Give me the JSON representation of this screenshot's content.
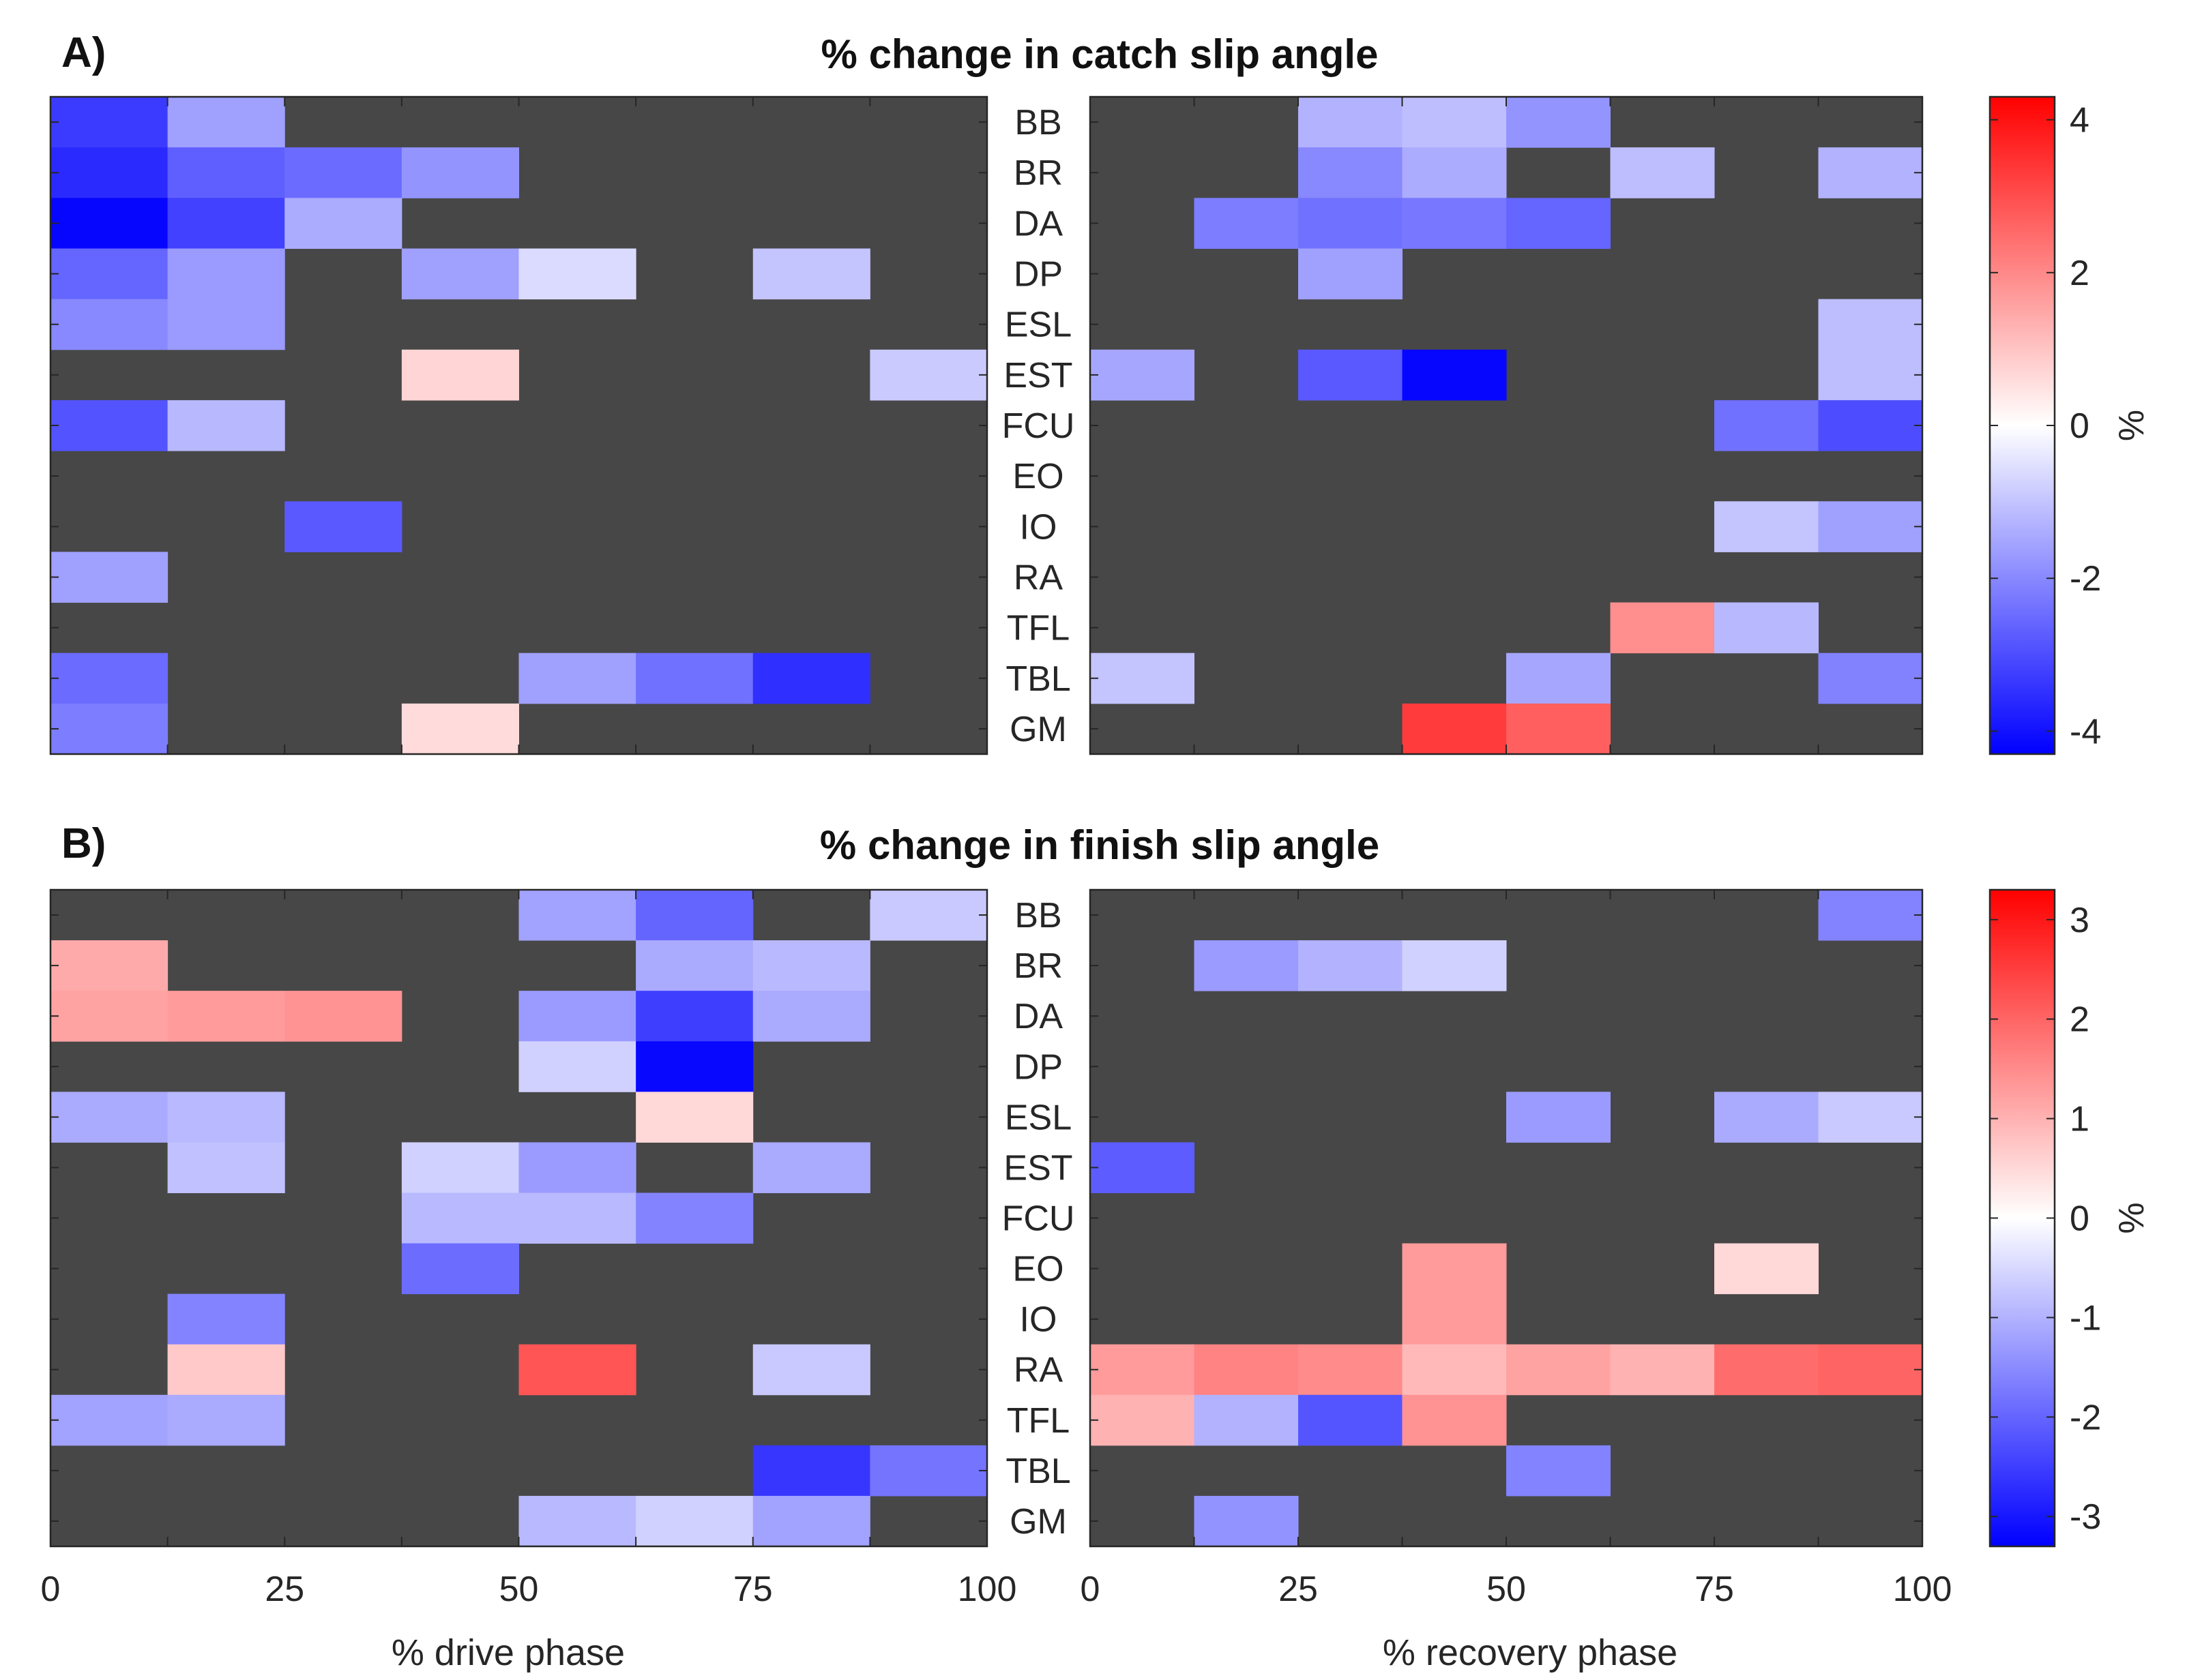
{
  "chart_data": {
    "type": "heatmap",
    "nodata_color": "#474747",
    "muscles": [
      "BB",
      "BR",
      "DA",
      "DP",
      "ESL",
      "EST",
      "FCU",
      "EO",
      "IO",
      "RA",
      "TFL",
      "TBL",
      "GM"
    ],
    "x_ticks": [
      "0",
      "25",
      "50",
      "75",
      "100"
    ],
    "xlabel_drive": "% drive phase",
    "xlabel_recovery": "% recovery phase",
    "colorbar_label": "%",
    "colormap": [
      "#0000ff",
      "#ffffff",
      "#ff0000"
    ],
    "panels": [
      {
        "label": "A)",
        "title": "% change in catch slip angle",
        "clim": [
          -4.3,
          4.3
        ],
        "colorbar_ticks": [
          "4",
          "2",
          "0",
          "-2",
          "-4"
        ],
        "colorbar_tick_values": [
          4,
          2,
          0,
          -2,
          -4
        ],
        "drive": [
          [
            -3.3,
            -1.6,
            null,
            null,
            null,
            null,
            null,
            null
          ],
          [
            -3.6,
            -2.7,
            -2.5,
            -1.8,
            null,
            null,
            null,
            null
          ],
          [
            -4.2,
            -3.2,
            -1.4,
            null,
            null,
            null,
            null,
            null
          ],
          [
            -2.6,
            -1.7,
            null,
            -1.6,
            -0.6,
            null,
            -1.0,
            null
          ],
          [
            -2.0,
            -1.7,
            null,
            null,
            null,
            null,
            null,
            null
          ],
          [
            null,
            null,
            null,
            0.7,
            null,
            null,
            null,
            -0.9
          ],
          [
            -2.9,
            -1.2,
            null,
            null,
            null,
            null,
            null,
            null
          ],
          [
            null,
            null,
            null,
            null,
            null,
            null,
            null,
            null
          ],
          [
            null,
            null,
            -2.8,
            null,
            null,
            null,
            null,
            null
          ],
          [
            -1.6,
            null,
            null,
            null,
            null,
            null,
            null,
            null
          ],
          [
            null,
            null,
            null,
            null,
            null,
            null,
            null,
            null
          ],
          [
            -2.5,
            null,
            null,
            null,
            -1.6,
            -2.4,
            -3.5,
            null
          ],
          [
            -2.2,
            null,
            null,
            0.6,
            null,
            null,
            null,
            null
          ]
        ],
        "recovery": [
          [
            null,
            null,
            -1.3,
            -1.1,
            -1.8,
            null,
            null,
            null
          ],
          [
            null,
            null,
            -2.0,
            -1.4,
            null,
            -1.1,
            null,
            -1.3
          ],
          [
            null,
            -2.2,
            -2.4,
            -2.3,
            -2.6,
            null,
            null,
            null
          ],
          [
            null,
            null,
            -1.6,
            null,
            null,
            null,
            null,
            null
          ],
          [
            null,
            null,
            null,
            null,
            null,
            null,
            null,
            -1.1
          ],
          [
            -1.5,
            null,
            -2.8,
            -4.2,
            null,
            null,
            null,
            -1.1
          ],
          [
            null,
            null,
            null,
            null,
            null,
            null,
            -2.4,
            -3.0
          ],
          [
            null,
            null,
            null,
            null,
            null,
            null,
            null,
            null
          ],
          [
            null,
            null,
            null,
            null,
            null,
            null,
            -1.0,
            -1.6
          ],
          [
            null,
            null,
            null,
            null,
            null,
            null,
            null,
            null
          ],
          [
            null,
            null,
            null,
            null,
            null,
            1.9,
            -1.2,
            null
          ],
          [
            -1.0,
            null,
            null,
            null,
            -1.5,
            null,
            null,
            -2.1
          ],
          [
            null,
            null,
            null,
            3.3,
            2.7,
            null,
            null,
            null
          ]
        ]
      },
      {
        "label": "B)",
        "title": "% change in finish slip angle",
        "clim": [
          -3.3,
          3.3
        ],
        "colorbar_ticks": [
          "3",
          "2",
          "1",
          "0",
          "-1",
          "-2",
          "-3"
        ],
        "colorbar_tick_values": [
          3,
          2,
          1,
          0,
          -1,
          -2,
          -3
        ],
        "drive": [
          [
            null,
            null,
            null,
            null,
            -1.2,
            -2.0,
            null,
            -0.7
          ],
          [
            1.1,
            null,
            null,
            null,
            null,
            -1.1,
            -0.9,
            null
          ],
          [
            1.2,
            1.3,
            1.4,
            null,
            -1.3,
            -2.5,
            -1.1,
            null
          ],
          [
            null,
            null,
            null,
            null,
            -0.6,
            -3.2,
            null,
            null
          ],
          [
            -1.1,
            -0.9,
            null,
            null,
            null,
            0.5,
            null,
            null
          ],
          [
            null,
            -0.8,
            null,
            -0.6,
            -1.3,
            null,
            -1.1,
            null
          ],
          [
            null,
            null,
            null,
            -0.9,
            -0.9,
            -1.6,
            null,
            null
          ],
          [
            null,
            null,
            null,
            -1.9,
            null,
            null,
            null,
            null
          ],
          [
            null,
            -1.6,
            null,
            null,
            null,
            null,
            null,
            null
          ],
          [
            null,
            0.7,
            null,
            null,
            2.2,
            null,
            -0.7,
            null
          ],
          [
            -1.2,
            -1.1,
            null,
            null,
            null,
            null,
            null,
            null
          ],
          [
            null,
            null,
            null,
            null,
            null,
            null,
            -2.6,
            -1.8
          ],
          [
            null,
            null,
            null,
            null,
            -0.9,
            -0.6,
            -1.2,
            null
          ]
        ],
        "recovery": [
          [
            null,
            null,
            null,
            null,
            null,
            null,
            null,
            -1.6
          ],
          [
            null,
            -1.3,
            -1.0,
            -0.6,
            null,
            null,
            null,
            null
          ],
          [
            null,
            null,
            null,
            null,
            null,
            null,
            null,
            null
          ],
          [
            null,
            null,
            null,
            null,
            null,
            null,
            null,
            null
          ],
          [
            null,
            null,
            null,
            null,
            -1.3,
            null,
            -1.1,
            -0.7
          ],
          [
            -2.1,
            null,
            null,
            null,
            null,
            null,
            null,
            null
          ],
          [
            null,
            null,
            null,
            null,
            null,
            null,
            null,
            null
          ],
          [
            null,
            null,
            null,
            1.3,
            null,
            null,
            0.5,
            null
          ],
          [
            null,
            null,
            null,
            1.3,
            null,
            null,
            null,
            null
          ],
          [
            1.3,
            1.6,
            1.5,
            0.9,
            1.2,
            1.0,
            1.9,
            2.0
          ],
          [
            1.0,
            -1.0,
            -2.2,
            1.4,
            null,
            null,
            null,
            null
          ],
          [
            null,
            null,
            null,
            null,
            -1.6,
            null,
            null,
            null
          ],
          [
            null,
            -1.4,
            null,
            null,
            null,
            null,
            null,
            null
          ]
        ]
      }
    ]
  }
}
